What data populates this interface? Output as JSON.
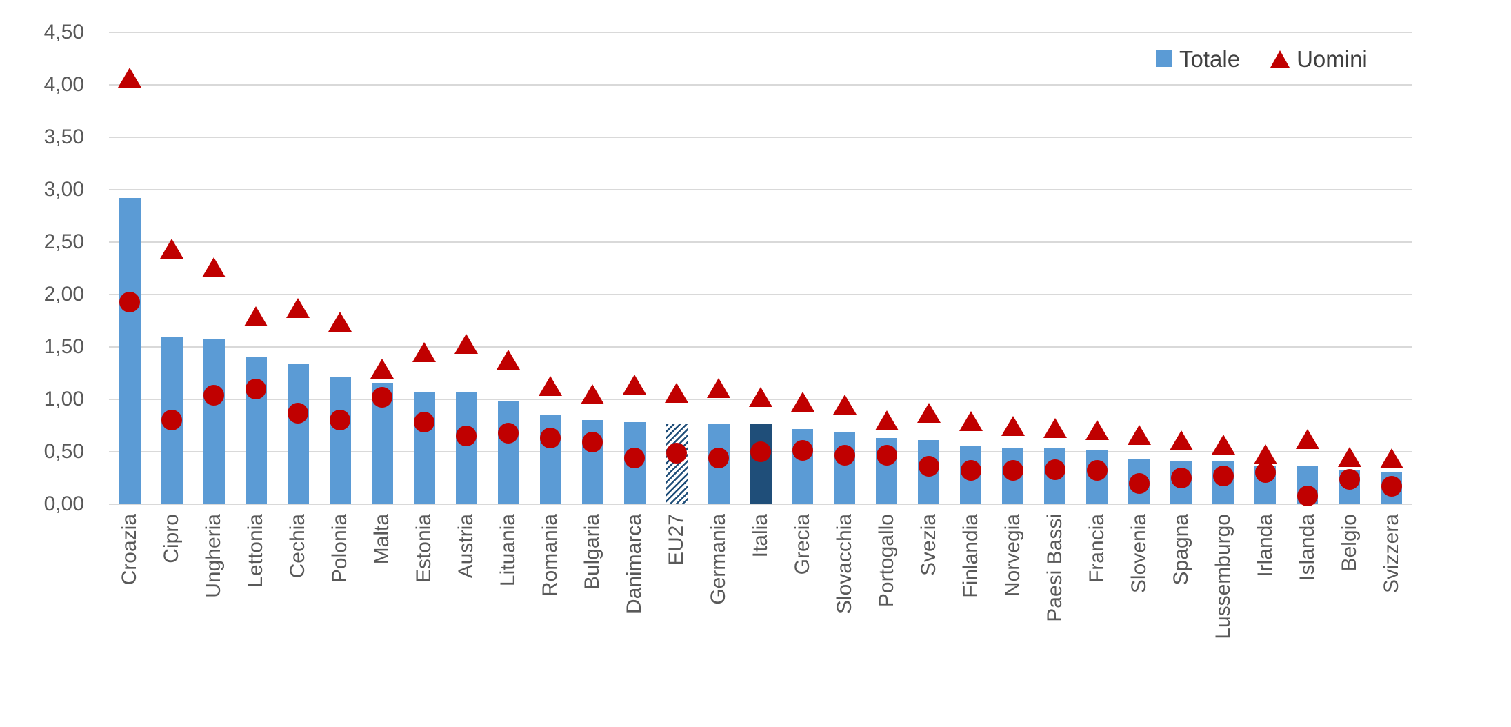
{
  "chart_data": {
    "type": "bar",
    "title": "",
    "xlabel": "",
    "ylabel": "",
    "categories": [
      "Croazia",
      "Cipro",
      "Ungheria",
      "Lettonia",
      "Cechia",
      "Polonia",
      "Malta",
      "Estonia",
      "Austria",
      "Lituania",
      "Romania",
      "Bulgaria",
      "Danimarca",
      "EU27",
      "Germania",
      "Italia",
      "Grecia",
      "Slovacchia",
      "Portogallo",
      "Svezia",
      "Finlandia",
      "Norvegia",
      "Paesi Bassi",
      "Francia",
      "Slovenia",
      "Spagna",
      "Lussemburgo",
      "Irlanda",
      "Islanda",
      "Belgio",
      "Svizzera"
    ],
    "series": [
      {
        "name": "Totale",
        "type": "bar",
        "color": "#5B9BD5",
        "values": [
          2.92,
          1.59,
          1.57,
          1.41,
          1.34,
          1.22,
          1.16,
          1.07,
          1.07,
          0.98,
          0.85,
          0.8,
          0.78,
          0.76,
          0.77,
          0.76,
          0.72,
          0.69,
          0.63,
          0.61,
          0.55,
          0.53,
          0.53,
          0.52,
          0.43,
          0.41,
          0.41,
          0.37,
          0.36,
          0.33,
          0.3
        ]
      },
      {
        "name": "Uomini",
        "type": "scatter",
        "marker": "triangle",
        "color": "#C00000",
        "values": [
          4.07,
          2.44,
          2.26,
          1.79,
          1.87,
          1.74,
          1.29,
          1.45,
          1.53,
          1.38,
          1.13,
          1.05,
          1.14,
          1.06,
          1.11,
          1.02,
          0.98,
          0.95,
          0.8,
          0.87,
          0.79,
          0.75,
          0.73,
          0.71,
          0.66,
          0.61,
          0.57,
          0.48,
          0.62,
          0.45,
          0.44
        ]
      },
      {
        "name": "",
        "type": "scatter",
        "marker": "circle",
        "color": "#C00000",
        "in_legend": false,
        "values": [
          1.93,
          0.8,
          1.04,
          1.1,
          0.87,
          0.8,
          1.02,
          0.78,
          0.65,
          0.68,
          0.63,
          0.59,
          0.44,
          0.49,
          0.44,
          0.5,
          0.51,
          0.47,
          0.47,
          0.36,
          0.32,
          0.32,
          0.33,
          0.32,
          0.2,
          0.25,
          0.27,
          0.3,
          0.08,
          0.24,
          0.17
        ]
      }
    ],
    "bar_styles": {
      "EU27": "hatched",
      "Italia": "solid-dark"
    },
    "highlight_color": "#1F4E79",
    "hatch_background": "#FFFFFF",
    "ylim": [
      0,
      4.5
    ],
    "y_ticks": [
      0,
      0.5,
      1.0,
      1.5,
      2.0,
      2.5,
      3.0,
      3.5,
      4.0,
      4.5
    ],
    "y_tick_labels": [
      "0,00",
      "0,50",
      "1,00",
      "1,50",
      "2,00",
      "2,50",
      "3,00",
      "3,50",
      "4,00",
      "4,50"
    ],
    "grid": "horizontal",
    "gridline_color": "#D9D9D9",
    "axis_label_color": "#595959",
    "legend_text_color": "#404040",
    "legend_position": "top-right",
    "legend": [
      "Totale",
      "Uomini"
    ]
  }
}
